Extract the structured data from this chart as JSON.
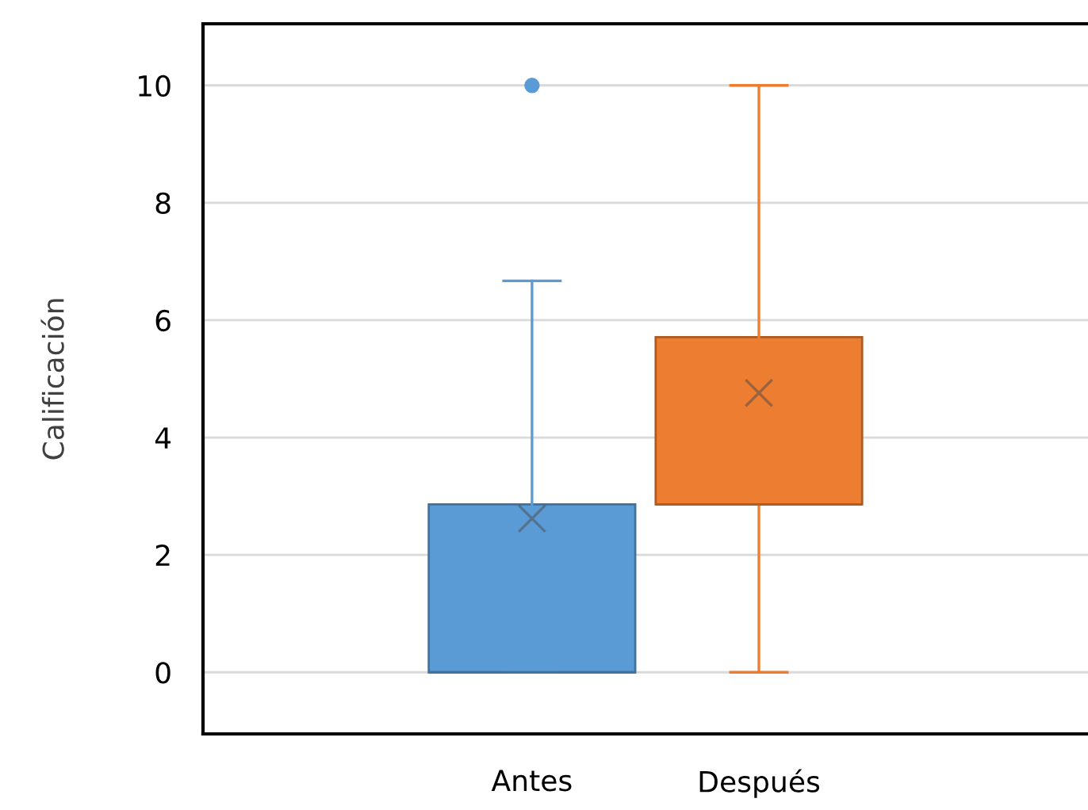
{
  "chart_data": {
    "type": "box",
    "ylabel": "Calificación",
    "categories": [
      "Antes",
      "Después"
    ],
    "series": [
      {
        "color": "#5b9bd5",
        "boxes": [
          {
            "low": 0,
            "q1": 0,
            "median": 0,
            "q3": 2.86,
            "high": 6.67,
            "mean": 2.62,
            "outliers": [
              10
            ]
          },
          null
        ]
      },
      {
        "color": "#ed7d31",
        "boxes": [
          null,
          {
            "low": 0,
            "q1": 2.86,
            "median": 2.86,
            "q3": 5.71,
            "high": 10,
            "mean": 4.76
          }
        ]
      }
    ],
    "ylim": [
      -1.05,
      11.05
    ],
    "yticks": [
      0,
      2,
      4,
      6,
      8,
      10
    ],
    "grid": "y",
    "legend": false
  }
}
